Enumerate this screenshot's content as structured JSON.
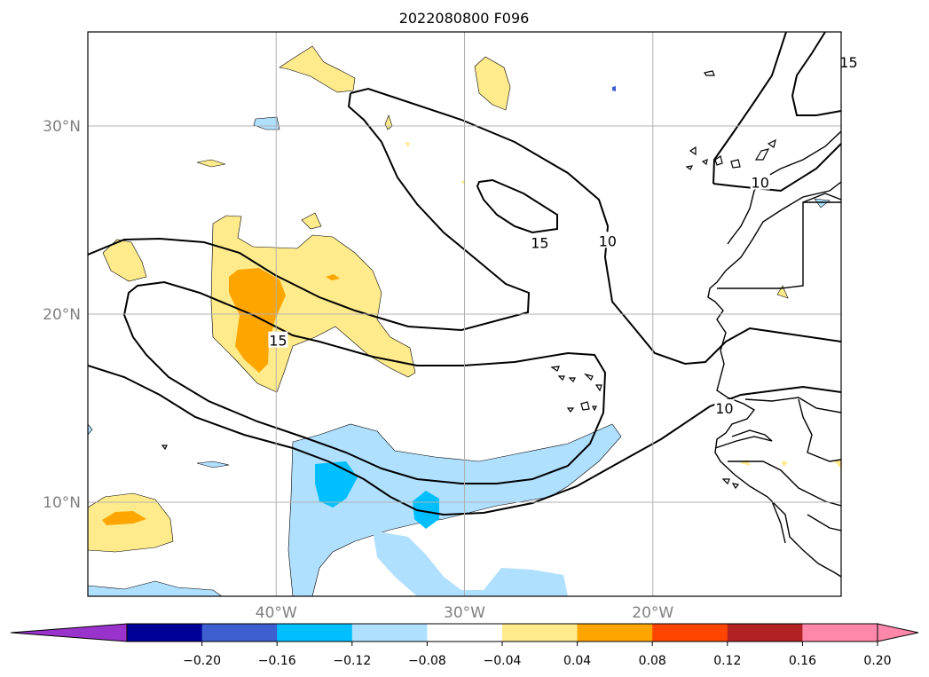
{
  "title": "2022080800 F096",
  "map": {
    "lon_range": [
      -50,
      -10
    ],
    "lat_range": [
      5,
      35
    ],
    "lat_ticks": [
      {
        "value": 30,
        "label": "30°N"
      },
      {
        "value": 20,
        "label": "20°N"
      },
      {
        "value": 10,
        "label": "10°N"
      }
    ],
    "lon_ticks": [
      {
        "value": -40,
        "label": "40°W"
      },
      {
        "value": -30,
        "label": "30°W"
      },
      {
        "value": -20,
        "label": "20°W"
      }
    ],
    "gridlines": true
  },
  "contours": {
    "labels": [
      {
        "text": "15",
        "lon": -9.6,
        "lat": 33.4
      },
      {
        "text": "10",
        "lon": -14.3,
        "lat": 27.0
      },
      {
        "text": "15",
        "lon": -26.0,
        "lat": 23.8
      },
      {
        "text": "10",
        "lon": -22.4,
        "lat": 23.9
      },
      {
        "text": "15",
        "lon": -39.9,
        "lat": 18.6
      },
      {
        "text": "10",
        "lon": -16.2,
        "lat": 15.0
      }
    ]
  },
  "colorbar": {
    "ticks": [
      "−0.20",
      "−0.16",
      "−0.12",
      "−0.08",
      "−0.04",
      "0.04",
      "0.08",
      "0.12",
      "0.16",
      "0.20"
    ],
    "colors": {
      "under": "#9933cc",
      "lt_020": "#000099",
      "lt_016": "#3d5fcf",
      "lt_012": "#00bfff",
      "lt_008": "#b0e0ff",
      "neutral": "#ffffff",
      "gt_004": "#ffeb8c",
      "gt_008": "#ffa500",
      "gt_012": "#ff4500",
      "gt_016": "#b22222",
      "over": "#ff88aa"
    }
  }
}
